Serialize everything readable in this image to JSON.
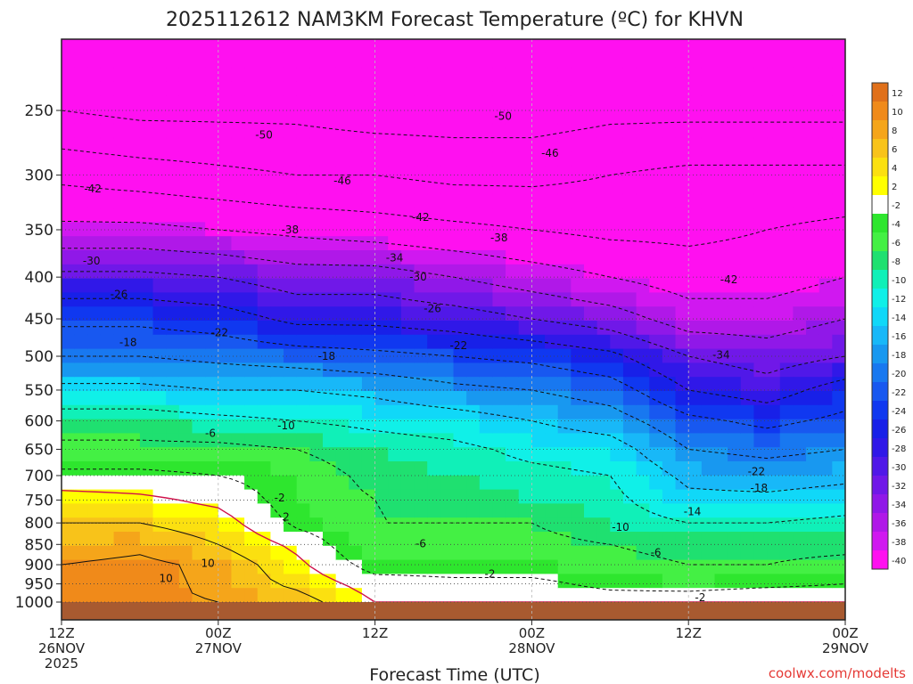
{
  "chart_data": {
    "type": "heatmap",
    "title": "2025112612 NAM3KM Forecast Temperature (ºC) for KHVN",
    "xlabel": "Forecast Time (UTC)",
    "ylabel": "",
    "x_ticks": [
      {
        "hour": 0,
        "label1": "12Z",
        "label2": "26NOV",
        "label3": "2025"
      },
      {
        "hour": 12,
        "label1": "00Z",
        "label2": "27NOV",
        "label3": ""
      },
      {
        "hour": 24,
        "label1": "12Z",
        "label2": "",
        "label3": ""
      },
      {
        "hour": 36,
        "label1": "00Z",
        "label2": "28NOV",
        "label3": ""
      },
      {
        "hour": 48,
        "label1": "12Z",
        "label2": "",
        "label3": ""
      },
      {
        "hour": 60,
        "label1": "00Z",
        "label2": "29NOV",
        "label3": ""
      }
    ],
    "x_range_hours": [
      0,
      60
    ],
    "y_ticks": [
      "250",
      "300",
      "350",
      "400",
      "450",
      "500",
      "550",
      "600",
      "650",
      "700",
      "750",
      "800",
      "850",
      "900",
      "950",
      "1000"
    ],
    "y_tick_values": [
      250,
      300,
      350,
      400,
      450,
      500,
      550,
      600,
      650,
      700,
      750,
      800,
      850,
      900,
      950,
      1000
    ],
    "y_range_hpa": [
      200,
      1010
    ],
    "colorbar": {
      "labels": [
        "12",
        "10",
        "8",
        "6",
        "4",
        "2",
        "-2",
        "-4",
        "-6",
        "-8",
        "-10",
        "-12",
        "-14",
        "-16",
        "-18",
        "-20",
        "-22",
        "-24",
        "-26",
        "-28",
        "-30",
        "-32",
        "-34",
        "-36",
        "-38",
        "-40"
      ],
      "colors": [
        "#e0701a",
        "#f08a1a",
        "#f5a51a",
        "#f8c31a",
        "#fbe010",
        "#ffff00",
        "#ffffff",
        "#2ee62e",
        "#44f044",
        "#1fe070",
        "#10f0b8",
        "#10f0e8",
        "#10d8f8",
        "#18b8f8",
        "#1898f0",
        "#1878f0",
        "#1858f0",
        "#1038f0",
        "#1820e8",
        "#3018e8",
        "#5018e8",
        "#7018e8",
        "#9018e8",
        "#b018e8",
        "#d018f0",
        "#ff10f0"
      ]
    },
    "surface_color": "#a85a30",
    "temperature_levels_hpa": [
      250,
      300,
      350,
      400,
      450,
      500,
      550,
      600,
      650,
      700,
      750,
      800,
      850,
      900,
      950,
      1000
    ],
    "temperature_series": [
      {
        "hour": 0,
        "values": [
          -50,
          -43,
          -37,
          -29,
          -23,
          -18,
          -13,
          -8,
          -5,
          -1,
          4,
          6,
          8,
          10,
          10,
          11
        ]
      },
      {
        "hour": 6,
        "values": [
          -51,
          -44,
          -37,
          -29,
          -23,
          -18,
          -13,
          -8,
          -5,
          -1,
          3,
          6,
          9,
          11,
          11,
          11
        ]
      },
      {
        "hour": 12,
        "values": [
          -51,
          -45,
          -38,
          -30,
          -24,
          -19,
          -14,
          -9,
          -5,
          -2,
          1,
          4,
          6,
          9,
          9,
          10
        ]
      },
      {
        "hour": 18,
        "values": [
          -51,
          -46,
          -39,
          -32,
          -27,
          -20,
          -14,
          -10,
          -6,
          -4,
          -4,
          -3,
          1,
          3,
          5,
          8
        ]
      },
      {
        "hour": 24,
        "values": [
          -52,
          -46,
          -40,
          -32,
          -27,
          -21,
          -15,
          -11,
          -8,
          -7,
          -6,
          -6,
          -6,
          -4,
          0,
          2
        ]
      },
      {
        "hour": 30,
        "values": [
          -52,
          -47,
          -41,
          -34,
          -28,
          -22,
          -17,
          -12,
          -9,
          -8,
          -7,
          -6,
          -5,
          -4,
          -1,
          2
        ]
      },
      {
        "hour": 36,
        "values": [
          -52,
          -47,
          -42,
          -36,
          -30,
          -23,
          -18,
          -14,
          -11,
          -9,
          -8,
          -6,
          -5,
          -4,
          -1,
          1
        ]
      },
      {
        "hour": 42,
        "values": [
          -51,
          -46,
          -43,
          -38,
          -32,
          -25,
          -20,
          -16,
          -12,
          -10,
          -9,
          -8,
          -6,
          -5,
          -3,
          0
        ]
      },
      {
        "hour": 48,
        "values": [
          -51,
          -45,
          -43,
          -40,
          -36,
          -30,
          -26,
          -21,
          -18,
          -15,
          -13,
          -10,
          -7,
          -6,
          -4,
          1
        ]
      },
      {
        "hour": 54,
        "values": [
          -51,
          -45,
          -42,
          -40,
          -36,
          -32,
          -28,
          -23,
          -19,
          -16,
          -13,
          -10,
          -7,
          -6,
          -3,
          2
        ]
      },
      {
        "hour": 60,
        "values": [
          -51,
          -45,
          -41,
          -38,
          -34,
          -30,
          -24,
          -21,
          -18,
          -15,
          -12,
          -9,
          -7,
          -5,
          -2,
          2
        ]
      }
    ],
    "contour_labels": [
      {
        "text": "-50",
        "hour": 15.5,
        "hpa": 268
      },
      {
        "text": "-50",
        "hour": 33.8,
        "hpa": 254
      },
      {
        "text": "-46",
        "hour": 21.5,
        "hpa": 305
      },
      {
        "text": "-46",
        "hour": 37.4,
        "hpa": 282
      },
      {
        "text": "-42",
        "hour": 2.4,
        "hpa": 312
      },
      {
        "text": "-42",
        "hour": 27.5,
        "hpa": 338
      },
      {
        "text": "-42",
        "hour": 51.1,
        "hpa": 403
      },
      {
        "text": "-38",
        "hour": 17.5,
        "hpa": 350
      },
      {
        "text": "-38",
        "hour": 33.5,
        "hpa": 358
      },
      {
        "text": "-34",
        "hour": 25.5,
        "hpa": 379
      },
      {
        "text": "-34",
        "hour": 50.5,
        "hpa": 498
      },
      {
        "text": "-30",
        "hour": 2.3,
        "hpa": 382
      },
      {
        "text": "-30",
        "hour": 27.3,
        "hpa": 400
      },
      {
        "text": "-26",
        "hour": 4.4,
        "hpa": 420
      },
      {
        "text": "-26",
        "hour": 28.4,
        "hpa": 437
      },
      {
        "text": "-22",
        "hour": 12.1,
        "hpa": 468
      },
      {
        "text": "-22",
        "hour": 30.4,
        "hpa": 485
      },
      {
        "text": "-22",
        "hour": 53.2,
        "hpa": 692
      },
      {
        "text": "-18",
        "hour": 5.1,
        "hpa": 481
      },
      {
        "text": "-18",
        "hour": 20.3,
        "hpa": 500
      },
      {
        "text": "-18",
        "hour": 53.4,
        "hpa": 725
      },
      {
        "text": "-14",
        "hour": 48.3,
        "hpa": 775
      },
      {
        "text": "-10",
        "hour": 17.2,
        "hpa": 608
      },
      {
        "text": "-10",
        "hour": 42.8,
        "hpa": 810
      },
      {
        "text": "-6",
        "hour": 11.4,
        "hpa": 621
      },
      {
        "text": "-6",
        "hour": 27.5,
        "hpa": 848
      },
      {
        "text": "-6",
        "hour": 45.5,
        "hpa": 870
      },
      {
        "text": "-2",
        "hour": 16.7,
        "hpa": 745
      },
      {
        "text": "-2",
        "hour": 32.8,
        "hpa": 924
      },
      {
        "text": "-2",
        "hour": 48.9,
        "hpa": 988
      },
      {
        "text": "2",
        "hour": 17.2,
        "hpa": 787
      },
      {
        "text": "10",
        "hour": 11.2,
        "hpa": 896
      },
      {
        "text": "10",
        "hour": 8.0,
        "hpa": 936
      }
    ]
  },
  "credit": "coolwx.com/modelts"
}
